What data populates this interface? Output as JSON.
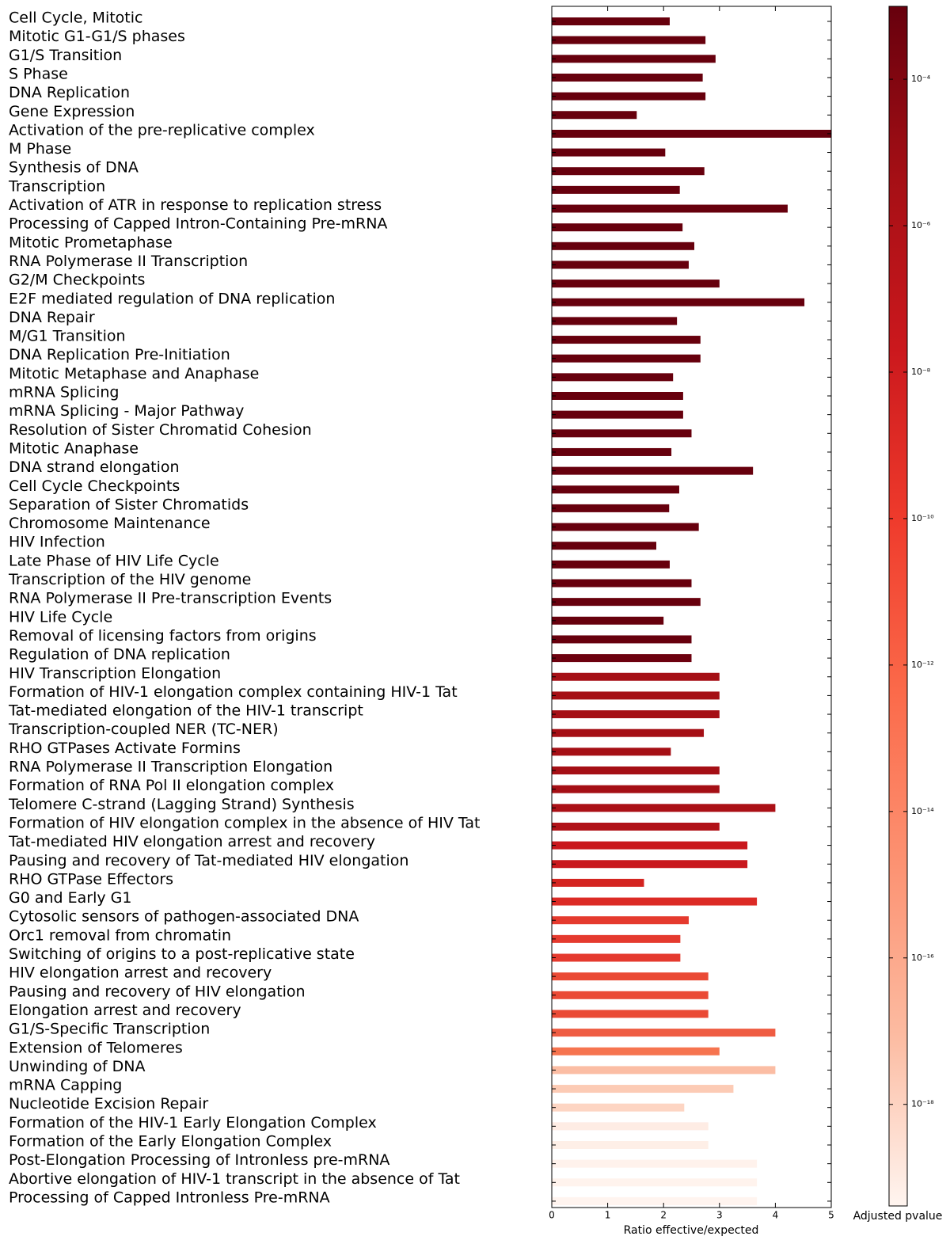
{
  "chart_data": {
    "type": "barh",
    "categories": [
      "Cell Cycle, Mitotic",
      "Mitotic G1-G1/S phases",
      "G1/S Transition",
      "S Phase",
      "DNA Replication",
      "Gene Expression",
      "Activation of the pre-replicative complex",
      "M Phase",
      "Synthesis of DNA",
      "Transcription",
      "Activation of ATR in response to replication stress",
      "Processing of Capped Intron-Containing Pre-mRNA",
      "Mitotic Prometaphase",
      "RNA Polymerase II Transcription",
      "G2/M Checkpoints",
      "E2F mediated regulation of DNA replication",
      "DNA Repair",
      "M/G1 Transition",
      "DNA Replication Pre-Initiation",
      "Mitotic Metaphase and Anaphase",
      "mRNA Splicing",
      "mRNA Splicing - Major Pathway",
      "Resolution of Sister Chromatid Cohesion",
      "Mitotic Anaphase",
      "DNA strand elongation",
      "Cell Cycle Checkpoints",
      "Separation of Sister Chromatids",
      "Chromosome Maintenance",
      "HIV Infection",
      "Late Phase of HIV Life Cycle",
      "Transcription of the HIV genome",
      "RNA Polymerase II Pre-transcription Events",
      "HIV Life Cycle",
      "Removal of licensing factors from origins",
      "Regulation of DNA replication",
      "HIV Transcription Elongation",
      "Formation of HIV-1 elongation complex containing HIV-1 Tat",
      "Tat-mediated elongation of the HIV-1 transcript",
      "Transcription-coupled NER (TC-NER)",
      "RHO GTPases Activate Formins",
      "RNA Polymerase II Transcription Elongation",
      "Formation of RNA Pol II elongation complex",
      "Telomere C-strand (Lagging Strand) Synthesis",
      "Formation of HIV elongation complex in the absence of HIV Tat",
      "Tat-mediated HIV elongation arrest and recovery",
      "Pausing and recovery of Tat-mediated HIV elongation",
      "RHO GTPase Effectors",
      "G0 and Early G1",
      "Cytosolic sensors of pathogen-associated DNA",
      "Orc1 removal from chromatin",
      "Switching of origins to a post-replicative state",
      "HIV elongation arrest and recovery",
      "Pausing and recovery of HIV elongation",
      "Elongation arrest and recovery",
      "G1/S-Specific Transcription",
      "Extension of Telomeres",
      "Unwinding of DNA",
      "mRNA Capping",
      "Nucleotide Excision Repair",
      "Formation of the HIV-1 Early Elongation Complex",
      "Formation of the Early Elongation Complex",
      "Post-Elongation Processing of Intronless pre-mRNA",
      "Abortive elongation of HIV-1 transcript in the absence of Tat",
      "Processing of Capped Intronless Pre-mRNA"
    ],
    "values": [
      2.11,
      2.75,
      2.93,
      2.7,
      2.75,
      1.52,
      5,
      2.03,
      2.73,
      2.29,
      4.22,
      2.34,
      2.55,
      2.45,
      3.0,
      4.52,
      2.24,
      2.66,
      2.66,
      2.17,
      2.35,
      2.35,
      2.5,
      2.14,
      3.6,
      2.28,
      2.1,
      2.63,
      1.87,
      2.11,
      2.5,
      2.66,
      2.0,
      2.5,
      2.5,
      3.0,
      3.0,
      3.0,
      2.72,
      2.13,
      3.0,
      3.0,
      4.0,
      3.0,
      3.5,
      3.5,
      1.65,
      3.67,
      2.45,
      2.3,
      2.3,
      2.8,
      2.8,
      2.8,
      4.0,
      3.0,
      4.0,
      3.25,
      2.37,
      2.8,
      2.8,
      3.67,
      3.67,
      3.67
    ],
    "colors": [
      "#67000d",
      "#67000d",
      "#67000d",
      "#67000d",
      "#67000d",
      "#67000d",
      "#67000d",
      "#67000d",
      "#67000d",
      "#67000d",
      "#67000d",
      "#67000d",
      "#67000d",
      "#67000d",
      "#67000d",
      "#67000d",
      "#67000d",
      "#67000d",
      "#67000d",
      "#67000d",
      "#67000d",
      "#67000d",
      "#67000d",
      "#67000d",
      "#67000d",
      "#67000d",
      "#67000d",
      "#67000d",
      "#67000d",
      "#67000d",
      "#67000d",
      "#67000d",
      "#67000d",
      "#67000d",
      "#6d010f",
      "#a50f15",
      "#a50f15",
      "#a50f15",
      "#a50f15",
      "#a50f15",
      "#a50f15",
      "#a50f15",
      "#ab1016",
      "#b11218",
      "#c9181d",
      "#c9181d",
      "#d42420",
      "#dc2a25",
      "#e53a2e",
      "#e53a2e",
      "#e53a2e",
      "#ea4a35",
      "#ea4a35",
      "#ea4a35",
      "#ef5c42",
      "#f6744f",
      "#fbbda4",
      "#fccbb5",
      "#fdd5c3",
      "#feece4",
      "#feefe7",
      "#fff2ec",
      "#fff3ed",
      "#fff4ef"
    ],
    "xlabel": "Ratio effective/expected",
    "xlim": [
      0,
      5
    ],
    "xticks": [
      0,
      1,
      2,
      3,
      4,
      5
    ],
    "colorbar": {
      "label": "Adjusted pvalue",
      "log": true,
      "lim": [
        4.1e-20,
        0.00099
      ],
      "ticks": [
        {
          "value": 0.0001,
          "label": "10⁻⁴"
        },
        {
          "value": 1e-06,
          "label": "10⁻⁶"
        },
        {
          "value": 1e-08,
          "label": "10⁻⁸"
        },
        {
          "value": 1e-10,
          "label": "10⁻¹⁰"
        },
        {
          "value": 1e-12,
          "label": "10⁻¹²"
        },
        {
          "value": 1e-14,
          "label": "10⁻¹⁴"
        },
        {
          "value": 1e-16,
          "label": "10⁻¹⁶"
        },
        {
          "value": 1e-18,
          "label": "10⁻¹⁸"
        }
      ],
      "colors": [
        "#fff5f0",
        "#fcbba1",
        "#fc9272",
        "#fb6a4a",
        "#ef3b2c",
        "#cb181d",
        "#a50f15",
        "#67000d"
      ]
    }
  }
}
